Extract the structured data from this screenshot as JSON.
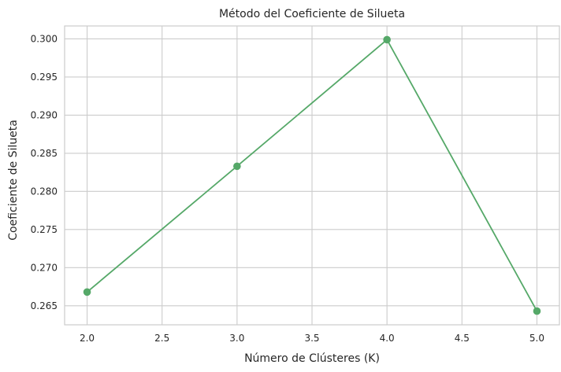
{
  "chart_data": {
    "type": "line",
    "title": "Método del Coeficiente de Silueta",
    "xlabel": "Número de Clústeres (K)",
    "ylabel": "Coeficiente de Silueta",
    "x": [
      2,
      3,
      4,
      5
    ],
    "series": [
      {
        "values": [
          0.2668,
          0.2833,
          0.2999,
          0.2643
        ]
      }
    ],
    "xlim": [
      1.85,
      5.15
    ],
    "ylim": [
      0.2625,
      0.3017
    ],
    "xticks": [
      2.0,
      2.5,
      3.0,
      3.5,
      4.0,
      4.5,
      5.0
    ],
    "xtick_labels": [
      "2.0",
      "2.5",
      "3.0",
      "3.5",
      "4.0",
      "4.5",
      "5.0"
    ],
    "yticks": [
      0.265,
      0.27,
      0.275,
      0.28,
      0.285,
      0.29,
      0.295,
      0.3
    ],
    "ytick_labels": [
      "0.265",
      "0.270",
      "0.275",
      "0.280",
      "0.285",
      "0.290",
      "0.295",
      "0.300"
    ],
    "grid": true,
    "line_color": "#55a868",
    "marker": "circle"
  }
}
